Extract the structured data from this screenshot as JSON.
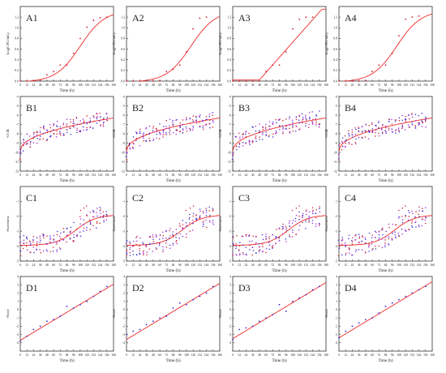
{
  "colors": {
    "fit": "#ee2a2a",
    "raw_a": "#d21e2a",
    "raw_b": "#3a2ad6",
    "raw_c": "#a02ad6",
    "axis": "#333333"
  },
  "x_ticks": [
    "0",
    "12",
    "24",
    "36",
    "48",
    "60",
    "72",
    "84",
    "96",
    "108",
    "120",
    "132",
    "144",
    "156",
    "168"
  ],
  "chart_data": [
    {
      "row": "A",
      "type": "scatter",
      "xlabel": "Time (h)",
      "ylabel": "Log(CFU/mL)",
      "xlim": [
        0,
        168
      ],
      "ylim": [
        0,
        1.4
      ],
      "y_ticks": [
        "0.0",
        "0.2",
        "0.4",
        "0.6",
        "0.8",
        "1.0",
        "1.2"
      ],
      "panels": [
        {
          "title": "A1",
          "fit": "logistic",
          "points": [
            [
              0,
              0
            ],
            [
              12,
              0
            ],
            [
              24,
              0.01
            ],
            [
              36,
              0.02
            ],
            [
              48,
              0.12
            ],
            [
              60,
              0.18
            ],
            [
              72,
              0.3
            ],
            [
              84,
              0.3
            ],
            [
              96,
              0.52
            ],
            [
              108,
              0.8
            ],
            [
              120,
              1.01
            ],
            [
              132,
              1.14
            ],
            [
              144,
              1.19
            ],
            [
              156,
              1.2
            ]
          ]
        },
        {
          "title": "A2",
          "fit": "logistic",
          "points": [
            [
              0,
              0
            ],
            [
              12,
              0
            ],
            [
              24,
              0
            ],
            [
              36,
              0.01
            ],
            [
              48,
              0
            ],
            [
              60,
              0.01
            ],
            [
              72,
              0.18
            ],
            [
              84,
              0.22
            ],
            [
              96,
              0.3
            ],
            [
              108,
              0.55
            ],
            [
              120,
              0.98
            ],
            [
              132,
              1.18
            ],
            [
              144,
              1.2
            ]
          ]
        },
        {
          "title": "A3",
          "fit": "linear_lag",
          "points": [
            [
              0,
              0
            ],
            [
              12,
              0
            ],
            [
              24,
              0
            ],
            [
              36,
              0
            ],
            [
              48,
              0
            ],
            [
              60,
              0.18
            ],
            [
              72,
              0.3
            ],
            [
              84,
              0.3
            ],
            [
              96,
              0.55
            ],
            [
              108,
              0.98
            ],
            [
              120,
              1.16
            ],
            [
              132,
              1.2
            ],
            [
              144,
              1.2
            ]
          ]
        },
        {
          "title": "A4",
          "fit": "logistic",
          "points": [
            [
              0,
              0
            ],
            [
              12,
              0
            ],
            [
              24,
              0
            ],
            [
              36,
              0
            ],
            [
              48,
              0.01
            ],
            [
              60,
              0.18
            ],
            [
              72,
              0.3
            ],
            [
              84,
              0.3
            ],
            [
              96,
              0.52
            ],
            [
              108,
              0.85
            ],
            [
              120,
              1.16
            ],
            [
              132,
              1.2
            ],
            [
              144,
              1.22
            ]
          ]
        }
      ]
    },
    {
      "row": "B",
      "type": "scatter",
      "xlabel": "Time (h)",
      "ylabel": "-GGB",
      "xlim": [
        0,
        168
      ],
      "ylim": [
        -12,
        -4
      ],
      "y_ticks": [
        "-12",
        "-11",
        "-10",
        "-9",
        "-8",
        "-7",
        "-6",
        "-5",
        "-4"
      ],
      "panels": [
        {
          "title": "B1",
          "fit": "power",
          "scatter": "multi"
        },
        {
          "title": "B2",
          "fit": "power",
          "scatter": "multi"
        },
        {
          "title": "B3",
          "fit": "power",
          "scatter": "multi"
        },
        {
          "title": "B4",
          "fit": "power",
          "scatter": "multi"
        }
      ]
    },
    {
      "row": "C",
      "type": "scatter",
      "xlabel": "Time (h)",
      "ylabel": "Sweetness",
      "xlim": [
        0,
        168
      ],
      "ylim": [
        -5,
        0
      ],
      "y_ticks": [
        "-5",
        "-4",
        "-3",
        "-2",
        "-1"
      ],
      "panels": [
        {
          "title": "C1",
          "fit": "sigmoid",
          "scatter": "multi"
        },
        {
          "title": "C2",
          "fit": "sigmoid",
          "scatter": "multi"
        },
        {
          "title": "C3",
          "fit": "sigmoid",
          "scatter": "multi"
        },
        {
          "title": "C4",
          "fit": "sigmoid",
          "scatter": "multi"
        }
      ]
    },
    {
      "row": "D",
      "type": "scatter",
      "xlabel": "Time (h)",
      "ylabel": "-Score",
      "xlim": [
        0,
        168
      ],
      "ylim": [
        -5,
        4
      ],
      "y_ticks": [
        "-4",
        "-3",
        "-2",
        "-1",
        "0",
        "1",
        "2",
        "3",
        "4"
      ],
      "panels": [
        {
          "title": "D1",
          "fit": "linear",
          "points": [
            [
              0,
              -3.8
            ],
            [
              12,
              -3.2
            ],
            [
              24,
              -2.4
            ],
            [
              36,
              -2.0
            ],
            [
              48,
              -1.4
            ],
            [
              60,
              -1.2
            ],
            [
              72,
              -0.8
            ],
            [
              84,
              0.4
            ],
            [
              96,
              0.2
            ],
            [
              108,
              0.6
            ],
            [
              120,
              1.0
            ],
            [
              132,
              1.6
            ],
            [
              144,
              2.2
            ],
            [
              156,
              2.8
            ]
          ]
        },
        {
          "title": "D2",
          "fit": "linear",
          "points": [
            [
              0,
              -3.0
            ],
            [
              12,
              -2.6
            ],
            [
              24,
              -2.4
            ],
            [
              36,
              -1.8
            ],
            [
              48,
              -1.4
            ],
            [
              60,
              -1.0
            ],
            [
              72,
              -0.8
            ],
            [
              84,
              0.2
            ],
            [
              96,
              0.8
            ],
            [
              108,
              0.6
            ],
            [
              120,
              1.2
            ],
            [
              132,
              1.6
            ],
            [
              144,
              2.0
            ],
            [
              156,
              2.8
            ]
          ]
        },
        {
          "title": "D3",
          "fit": "linear",
          "points": [
            [
              0,
              -3.6
            ],
            [
              12,
              -2.4
            ],
            [
              24,
              -2.2
            ],
            [
              36,
              -2.0
            ],
            [
              48,
              -1.4
            ],
            [
              60,
              -1.0
            ],
            [
              72,
              -0.6
            ],
            [
              84,
              0.6
            ],
            [
              96,
              -0.2
            ],
            [
              108,
              1.0
            ],
            [
              120,
              1.4
            ],
            [
              132,
              1.8
            ],
            [
              144,
              2.4
            ],
            [
              156,
              2.8
            ]
          ]
        },
        {
          "title": "D4",
          "fit": "linear",
          "points": [
            [
              0,
              -3.4
            ],
            [
              12,
              -2.6
            ],
            [
              24,
              -2.0
            ],
            [
              36,
              -1.6
            ],
            [
              48,
              -1.2
            ],
            [
              60,
              -1.0
            ],
            [
              72,
              -0.4
            ],
            [
              84,
              0.4
            ],
            [
              96,
              0.8
            ],
            [
              108,
              1.2
            ],
            [
              120,
              1.6
            ],
            [
              132,
              2.0
            ],
            [
              144,
              2.4
            ],
            [
              156,
              2.8
            ]
          ]
        }
      ]
    }
  ]
}
